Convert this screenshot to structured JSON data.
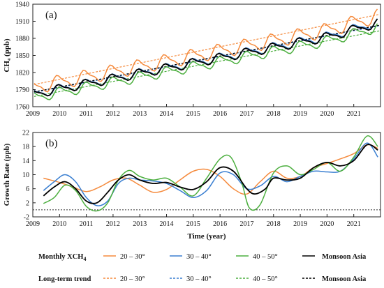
{
  "chart_data": [
    {
      "panel": "(a)",
      "type": "line",
      "ylabel": "CH₄ (ppb)",
      "ylim": [
        1760,
        1940
      ],
      "yticks": [
        1760,
        1790,
        1820,
        1850,
        1880,
        1910,
        1940
      ],
      "xlim": [
        2009,
        2022
      ],
      "xticks": [
        "2009",
        "2010",
        "2011",
        "2012",
        "2013",
        "2014",
        "2015",
        "2016",
        "2017",
        "2018",
        "2019",
        "2020",
        "2021"
      ],
      "grid": false,
      "series": [
        {
          "name": "20 – 30°",
          "color": "#f58a3c",
          "kind": "monthly",
          "base": 1794,
          "slope": 9.1,
          "amp": 11,
          "phase": 0.72
        },
        {
          "name": "30 – 40°",
          "color": "#3a7fd1",
          "kind": "monthly",
          "base": 1782,
          "slope": 9.2,
          "amp": 7,
          "phase": 0.78
        },
        {
          "name": "40 – 50°",
          "color": "#4caf3f",
          "kind": "monthly",
          "base": 1776,
          "slope": 9.0,
          "amp": 8,
          "phase": 0.8
        },
        {
          "name": "Monsoon Asia",
          "color": "#000000",
          "kind": "monthly",
          "base": 1782,
          "slope": 9.1,
          "amp": 7,
          "phase": 0.76
        },
        {
          "name": "20 – 30°",
          "color": "#f58a3c",
          "kind": "trend",
          "start": 1799,
          "end": 1922
        },
        {
          "name": "30 – 40°",
          "color": "#3a7fd1",
          "kind": "trend",
          "start": 1785,
          "end": 1902
        },
        {
          "name": "40 – 50°",
          "color": "#4caf3f",
          "kind": "trend",
          "start": 1778,
          "end": 1893
        },
        {
          "name": "Monsoon Asia",
          "color": "#000000",
          "kind": "trend",
          "start": 1786,
          "end": 1903
        }
      ]
    },
    {
      "panel": "(b)",
      "type": "line",
      "ylabel": "Growth Rate (ppb)",
      "xlabel": "Time (year)",
      "ylim": [
        -2,
        22
      ],
      "yticks": [
        -2,
        2,
        6,
        10,
        14,
        18,
        22
      ],
      "xlim": [
        2009,
        2022
      ],
      "xticks": [
        "2009",
        "2010",
        "2011",
        "2012",
        "2013",
        "2014",
        "2015",
        "2016",
        "2017",
        "2018",
        "2019",
        "2020",
        "2021"
      ],
      "zero_line": 0,
      "series": [
        {
          "name": "20 – 30°",
          "color": "#f58a3c",
          "x": [
            2009.4,
            2010.0,
            2010.5,
            2011.0,
            2011.5,
            2012.0,
            2012.5,
            2013.0,
            2013.5,
            2014.0,
            2014.5,
            2015.0,
            2015.5,
            2016.0,
            2016.5,
            2017.0,
            2017.5,
            2018.0,
            2018.5,
            2019.0,
            2019.5,
            2020.0,
            2020.5,
            2021.0,
            2021.5,
            2021.9
          ],
          "y": [
            9.0,
            7.8,
            6.5,
            5.2,
            6.5,
            8.5,
            9.0,
            7.0,
            5.0,
            5.8,
            8.5,
            11.0,
            11.5,
            9.5,
            6.0,
            4.5,
            8.0,
            11.0,
            9.0,
            9.5,
            12.0,
            13.2,
            14.5,
            16.0,
            18.5,
            17.5
          ]
        },
        {
          "name": "30 – 40°",
          "color": "#3a7fd1",
          "x": [
            2009.4,
            2009.8,
            2010.2,
            2010.6,
            2011.0,
            2011.4,
            2011.8,
            2012.2,
            2012.6,
            2013.0,
            2013.5,
            2014.0,
            2014.5,
            2015.0,
            2015.5,
            2016.0,
            2016.5,
            2017.0,
            2017.5,
            2018.0,
            2018.5,
            2019.0,
            2019.5,
            2020.0,
            2020.5,
            2021.0,
            2021.5,
            2021.9
          ],
          "y": [
            5.5,
            8.0,
            10.0,
            8.0,
            3.5,
            1.2,
            2.5,
            7.5,
            9.0,
            8.5,
            8.2,
            7.5,
            5.5,
            3.5,
            5.5,
            10.5,
            10.0,
            6.0,
            6.8,
            9.5,
            8.0,
            9.5,
            11.0,
            10.8,
            11.0,
            14.5,
            19.0,
            15.0
          ]
        },
        {
          "name": "40 – 50°",
          "color": "#4caf3f",
          "x": [
            2009.4,
            2009.8,
            2010.2,
            2010.6,
            2011.0,
            2011.4,
            2011.8,
            2012.2,
            2012.6,
            2013.0,
            2013.5,
            2014.0,
            2014.5,
            2015.0,
            2015.5,
            2016.0,
            2016.4,
            2016.8,
            2017.1,
            2017.5,
            2018.0,
            2018.5,
            2019.0,
            2019.5,
            2020.0,
            2020.5,
            2021.0,
            2021.5,
            2021.9
          ],
          "y": [
            1.8,
            3.5,
            7.0,
            5.5,
            1.0,
            -0.3,
            2.0,
            8.5,
            11.2,
            9.5,
            8.5,
            9.0,
            6.5,
            4.0,
            9.0,
            14.5,
            15.0,
            8.0,
            0.5,
            1.5,
            10.5,
            12.5,
            10.0,
            11.5,
            13.5,
            11.0,
            15.0,
            21.0,
            18.0
          ]
        },
        {
          "name": "Monsoon Asia",
          "color": "#000000",
          "x": [
            2009.4,
            2009.8,
            2010.2,
            2010.6,
            2011.0,
            2011.4,
            2011.8,
            2012.2,
            2012.6,
            2013.0,
            2013.5,
            2014.0,
            2014.5,
            2015.0,
            2015.5,
            2016.0,
            2016.5,
            2017.0,
            2017.3,
            2017.7,
            2018.0,
            2018.5,
            2019.0,
            2019.5,
            2020.0,
            2020.5,
            2021.0,
            2021.5,
            2021.9
          ],
          "y": [
            4.0,
            6.5,
            8.0,
            6.0,
            2.5,
            2.0,
            5.0,
            8.5,
            10.0,
            8.5,
            7.5,
            7.8,
            6.5,
            5.8,
            8.0,
            12.0,
            11.0,
            6.0,
            4.5,
            6.0,
            9.0,
            8.5,
            9.0,
            12.0,
            13.5,
            12.5,
            14.0,
            18.5,
            17.0
          ]
        }
      ]
    }
  ],
  "legend": {
    "row1_title": "Monthly XCH",
    "row1_sub": "4",
    "row2_title": "Long-term trend",
    "items": [
      {
        "label": "20 – 30°",
        "color": "#f58a3c"
      },
      {
        "label": "30 – 40°",
        "color": "#3a7fd1"
      },
      {
        "label": "40 – 50°",
        "color": "#4caf3f"
      },
      {
        "label": "Monsoon Asia",
        "color": "#000000"
      }
    ]
  }
}
